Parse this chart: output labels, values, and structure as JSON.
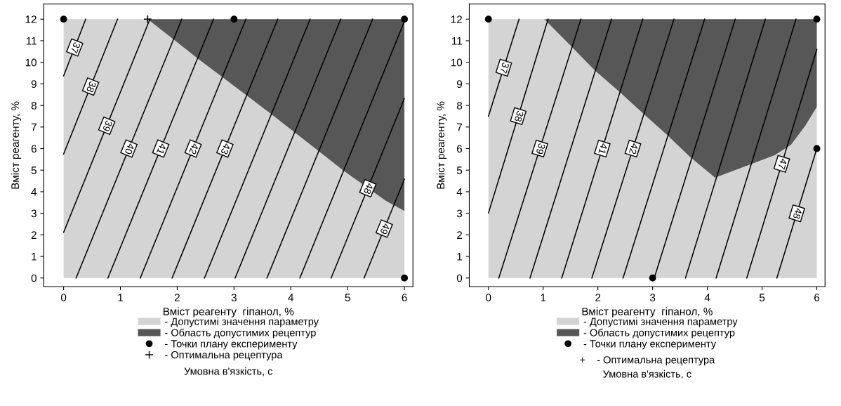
{
  "chart_data": [
    {
      "type": "line",
      "stacked": true,
      "xlabel": "Вміст реагенту  гіпанол, %",
      "ylabel": "Вміст реагенту, %",
      "xlim": [
        -0.35,
        6.15
      ],
      "ylim": [
        -0.4,
        12.7
      ],
      "xticks": [
        0,
        1,
        2,
        3,
        4,
        5,
        6
      ],
      "yticks": [
        0,
        1,
        2,
        3,
        4,
        5,
        6,
        7,
        8,
        9,
        10,
        11,
        12
      ],
      "grid": false,
      "legend": "bottom",
      "annotations": [
        "Умовна в'язкість, с"
      ],
      "series": [
        {
          "type": "area",
          "name": "- Допустимі значення параметру",
          "color": "#d4d4d4",
          "x": [
            0,
            1.48,
            2.36,
            3.2,
            3.66,
            4.5,
            4.92,
            5.67,
            5.97,
            6.0
          ],
          "values": [
            12,
            12,
            10.18,
            8.51,
            7.59,
            5.86,
            4.99,
            3.58,
            3.15,
            3.1
          ]
        },
        {
          "type": "area",
          "name": "- Область допустимих рецептур",
          "color": "#575757",
          "x": [
            0,
            1.48,
            2.36,
            3.2,
            3.66,
            4.5,
            4.92,
            5.67,
            5.97,
            6.0
          ],
          "values": [
            0,
            0,
            1.82,
            3.49,
            4.41,
            6.14,
            7.01,
            8.42,
            8.85,
            8.9
          ]
        },
        {
          "name": "37",
          "color": "#000000",
          "x": [
            0,
            0.39
          ],
          "values": [
            9.37,
            12
          ]
        },
        {
          "name": "38",
          "color": "#000000",
          "x": [
            0,
            0.95
          ],
          "values": [
            5.75,
            12
          ]
        },
        {
          "name": "39",
          "color": "#000000",
          "x": [
            0,
            1.52
          ],
          "values": [
            2.12,
            12
          ]
        },
        {
          "name": "40",
          "color": "#000000",
          "x": [
            0.22,
            2.08
          ],
          "values": [
            0,
            12
          ]
        },
        {
          "name": "41",
          "color": "#000000",
          "x": [
            0.78,
            2.64
          ],
          "values": [
            0,
            12
          ]
        },
        {
          "name": "42",
          "color": "#000000",
          "x": [
            1.35,
            3.21
          ],
          "values": [
            0,
            12
          ]
        },
        {
          "name": "43",
          "color": "#000000",
          "x": [
            1.91,
            3.77
          ],
          "values": [
            0,
            12
          ]
        },
        {
          "color": "#000000",
          "x": [
            2.48,
            4.34
          ],
          "values": [
            0,
            12
          ]
        },
        {
          "color": "#000000",
          "x": [
            3.02,
            4.88
          ],
          "values": [
            0,
            12
          ]
        },
        {
          "color": "#000000",
          "x": [
            3.58,
            5.44
          ],
          "values": [
            0,
            12
          ]
        },
        {
          "color": "#000000",
          "x": [
            4.16,
            6.0
          ],
          "values": [
            0,
            11.9
          ]
        },
        {
          "name": "48",
          "color": "#000000",
          "x": [
            4.71,
            6.0
          ],
          "values": [
            0,
            8.32
          ]
        },
        {
          "name": "49",
          "color": "#000000",
          "x": [
            5.29,
            6.0
          ],
          "values": [
            0,
            4.58
          ]
        },
        {
          "type": "scatter",
          "name": "- Точки плану експерименту",
          "color": "#000000",
          "marker": "circle",
          "x": [
            0,
            3,
            6,
            6
          ],
          "values": [
            12,
            12,
            12,
            0
          ]
        },
        {
          "type": "scatter",
          "name": "- Оптимальна рецептура",
          "color": "#000000",
          "marker": "cross",
          "x": [
            1.48
          ],
          "values": [
            12
          ]
        }
      ]
    },
    {
      "type": "line",
      "stacked": true,
      "xlabel": "Вміст реагенту  гіпанол, %",
      "ylabel": "Вміст реагенту, %",
      "xlim": [
        -0.35,
        6.15
      ],
      "ylim": [
        -0.4,
        12.7
      ],
      "xticks": [
        0,
        1,
        2,
        3,
        4,
        5,
        6
      ],
      "yticks": [
        0,
        1,
        2,
        3,
        4,
        5,
        6,
        7,
        8,
        9,
        10,
        11,
        12
      ],
      "grid": false,
      "legend": "bottom",
      "annotations": [
        "+    - Оптимальна рецептура",
        "Умовна в'язкість, с"
      ],
      "series": [
        {
          "type": "area",
          "name": "- Допустимі значення параметру",
          "color": "#d4d4d4",
          "x": [
            0,
            1.02,
            1.52,
            1.94,
            2.39,
            2.84,
            3.27,
            3.67,
            4.14,
            5.23,
            5.53,
            5.79,
            6.0
          ],
          "values": [
            12,
            12,
            10.72,
            9.63,
            8.64,
            7.6,
            6.62,
            5.64,
            4.65,
            5.69,
            6.18,
            7.06,
            7.93
          ]
        },
        {
          "type": "area",
          "name": "- Область допустимих рецептур",
          "color": "#575757",
          "x": [
            0,
            1.02,
            1.52,
            1.94,
            2.39,
            2.84,
            3.27,
            3.67,
            4.14,
            5.23,
            5.53,
            5.79,
            6.0
          ],
          "values": [
            0,
            0,
            1.28,
            2.37,
            3.36,
            4.4,
            5.38,
            6.36,
            7.35,
            6.31,
            5.82,
            4.94,
            4.07
          ]
        },
        {
          "name": "37",
          "color": "#000000",
          "x": [
            0,
            0.56
          ],
          "values": [
            7.5,
            12
          ]
        },
        {
          "name": "38",
          "color": "#000000",
          "x": [
            0,
            1.09
          ],
          "values": [
            3.01,
            12
          ]
        },
        {
          "name": "39",
          "color": "#000000",
          "x": [
            0.19,
            1.69
          ],
          "values": [
            0,
            12
          ]
        },
        {
          "color": "#000000",
          "x": [
            0.76,
            2.25
          ],
          "values": [
            0,
            12
          ]
        },
        {
          "name": "41",
          "color": "#000000",
          "x": [
            1.34,
            2.82
          ],
          "values": [
            0,
            12
          ]
        },
        {
          "name": "42",
          "color": "#000000",
          "x": [
            1.89,
            3.39
          ],
          "values": [
            0,
            12
          ]
        },
        {
          "color": "#000000",
          "x": [
            2.46,
            3.95
          ],
          "values": [
            0,
            12
          ]
        },
        {
          "color": "#000000",
          "x": [
            3.03,
            4.51
          ],
          "values": [
            0,
            12
          ]
        },
        {
          "color": "#000000",
          "x": [
            3.6,
            5.06
          ],
          "values": [
            0,
            12
          ]
        },
        {
          "color": "#000000",
          "x": [
            4.16,
            5.62
          ],
          "values": [
            0,
            12
          ]
        },
        {
          "name": "47",
          "color": "#000000",
          "x": [
            4.72,
            6.0
          ],
          "values": [
            0,
            10.59
          ]
        },
        {
          "name": "48",
          "color": "#000000",
          "x": [
            5.27,
            6.0
          ],
          "values": [
            0,
            6.0
          ]
        },
        {
          "type": "scatter",
          "name": "- Точки плану експерименту",
          "color": "#000000",
          "marker": "circle",
          "x": [
            0,
            6,
            6,
            3
          ],
          "values": [
            12,
            12,
            6,
            0
          ]
        }
      ]
    }
  ]
}
